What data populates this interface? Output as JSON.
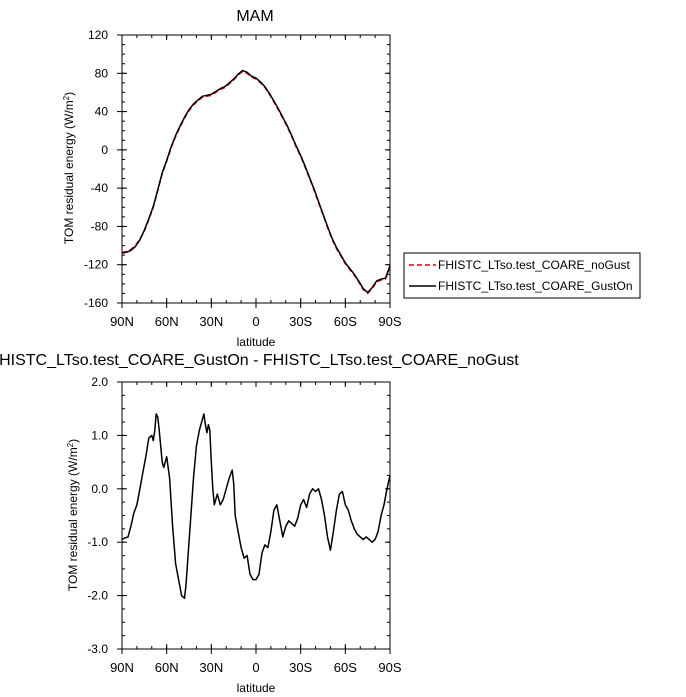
{
  "chart_data": [
    {
      "type": "line",
      "title": "MAM",
      "xlabel": "latitude",
      "ylabel": "TOM residual energy (W/m",
      "ylabel_sup": "2",
      "ylabel_close": ")",
      "xlim": [
        90,
        -90
      ],
      "ylim": [
        -160,
        120
      ],
      "x_ticks": [
        90,
        60,
        30,
        0,
        -30,
        -60,
        -90
      ],
      "x_tick_labels": [
        "90N",
        "60N",
        "30N",
        "0",
        "30S",
        "60S",
        "90S"
      ],
      "y_ticks": [
        -160,
        -120,
        -80,
        -40,
        0,
        40,
        80,
        120
      ],
      "y_tick_labels": [
        "-160",
        "-120",
        "-80",
        "-40",
        "0",
        "40",
        "80",
        "120"
      ],
      "legend_position": "right",
      "series": [
        {
          "name": "FHISTC_LTso.test_COARE_noGust",
          "color": "#e00000",
          "dash": "dashed",
          "x": [
            90,
            87,
            84,
            81,
            78,
            75,
            72,
            69,
            66,
            63,
            60,
            57,
            54,
            51,
            48,
            45,
            42,
            39,
            36,
            33,
            30,
            27,
            24,
            21,
            18,
            15,
            12,
            9,
            6,
            3,
            0,
            -3,
            -6,
            -9,
            -12,
            -15,
            -18,
            -21,
            -24,
            -27,
            -30,
            -33,
            -36,
            -39,
            -42,
            -45,
            -48,
            -51,
            -54,
            -57,
            -60,
            -63,
            -66,
            -69,
            -72,
            -75,
            -78,
            -81,
            -84,
            -87,
            -90
          ],
          "y": [
            -107,
            -106,
            -104,
            -100,
            -93,
            -85,
            -73,
            -60,
            -43,
            -25,
            -12,
            2,
            14,
            24,
            33,
            41,
            47,
            51,
            55,
            56,
            57,
            60,
            63,
            65,
            69,
            73,
            78,
            82,
            80,
            76,
            74,
            70,
            65,
            58,
            50,
            42,
            33,
            24,
            14,
            3,
            -7,
            -18,
            -30,
            -42,
            -55,
            -68,
            -81,
            -93,
            -103,
            -111,
            -119,
            -125,
            -131,
            -138,
            -146,
            -150,
            -145,
            -138,
            -136,
            -135,
            -122
          ]
        },
        {
          "name": "FHISTC_LTso.test_COARE_GustOn",
          "color": "#000000",
          "dash": "solid",
          "x": [
            90,
            87,
            84,
            81,
            78,
            75,
            72,
            69,
            66,
            63,
            60,
            57,
            54,
            51,
            48,
            45,
            42,
            39,
            36,
            33,
            30,
            27,
            24,
            21,
            18,
            15,
            12,
            9,
            6,
            3,
            0,
            -3,
            -6,
            -9,
            -12,
            -15,
            -18,
            -21,
            -24,
            -27,
            -30,
            -33,
            -36,
            -39,
            -42,
            -45,
            -48,
            -51,
            -54,
            -57,
            -60,
            -63,
            -66,
            -69,
            -72,
            -75,
            -78,
            -81,
            -84,
            -87,
            -90
          ],
          "y": [
            -108,
            -107,
            -105,
            -101,
            -94,
            -84,
            -72,
            -59,
            -42,
            -24,
            -11,
            3,
            15,
            25,
            34,
            42,
            48,
            52,
            56,
            57,
            58,
            61,
            64,
            66,
            70,
            74,
            79,
            83,
            81,
            77,
            75,
            71,
            66,
            59,
            51,
            43,
            34,
            25,
            15,
            4,
            -6,
            -17,
            -29,
            -41,
            -54,
            -67,
            -80,
            -92,
            -102,
            -110,
            -118,
            -124,
            -130,
            -137,
            -145,
            -149,
            -144,
            -137,
            -135,
            -134,
            -121
          ]
        }
      ]
    },
    {
      "type": "line",
      "title": "FHISTC_LTso.test_COARE_GustOn - FHISTC_LTso.test_COARE_noGust",
      "xlabel": "latitude",
      "ylabel": "TOM residual energy (W/m",
      "ylabel_sup": "2",
      "ylabel_close": ")",
      "xlim": [
        90,
        -90
      ],
      "ylim": [
        -3.0,
        2.0
      ],
      "x_ticks": [
        90,
        60,
        30,
        0,
        -30,
        -60,
        -90
      ],
      "x_tick_labels": [
        "90N",
        "60N",
        "30N",
        "0",
        "30S",
        "60S",
        "90S"
      ],
      "y_ticks": [
        -3.0,
        -2.0,
        -1.0,
        0.0,
        1.0,
        2.0
      ],
      "y_tick_labels": [
        "-3.0",
        "-2.0",
        "-1.0",
        "0.0",
        "1.0",
        "2.0"
      ],
      "series": [
        {
          "color": "#000000",
          "x": [
            90,
            88,
            86,
            84,
            82,
            80,
            78,
            76,
            74,
            72,
            70,
            69,
            68,
            67,
            66,
            65,
            64,
            63,
            62,
            60,
            58,
            56,
            54,
            52,
            50,
            48,
            47,
            46,
            44,
            42,
            40,
            38,
            36,
            35,
            34,
            33,
            32,
            31,
            30,
            29,
            28,
            26,
            24,
            22,
            20,
            18,
            16,
            15,
            14,
            12,
            10,
            8,
            6,
            4,
            2,
            0,
            -2,
            -4,
            -6,
            -8,
            -10,
            -12,
            -14,
            -16,
            -18,
            -20,
            -22,
            -24,
            -26,
            -28,
            -30,
            -32,
            -34,
            -36,
            -38,
            -40,
            -42,
            -44,
            -46,
            -48,
            -50,
            -52,
            -54,
            -56,
            -58,
            -60,
            -62,
            -64,
            -66,
            -68,
            -70,
            -72,
            -74,
            -76,
            -78,
            -80,
            -82,
            -84,
            -86,
            -88,
            -90
          ],
          "y": [
            -0.95,
            -0.92,
            -0.9,
            -0.7,
            -0.45,
            -0.3,
            0.0,
            0.3,
            0.6,
            0.95,
            1.0,
            0.9,
            1.1,
            1.4,
            1.35,
            1.1,
            0.8,
            0.5,
            0.4,
            0.6,
            0.2,
            -0.7,
            -1.4,
            -1.7,
            -2.0,
            -2.05,
            -1.8,
            -1.4,
            -0.6,
            0.2,
            0.8,
            1.1,
            1.3,
            1.4,
            1.2,
            1.05,
            1.2,
            1.1,
            0.5,
            0.0,
            -0.3,
            -0.1,
            -0.3,
            -0.2,
            0.0,
            0.2,
            0.35,
            0.1,
            -0.5,
            -0.8,
            -1.1,
            -1.3,
            -1.25,
            -1.6,
            -1.7,
            -1.7,
            -1.6,
            -1.2,
            -1.05,
            -1.1,
            -0.8,
            -0.4,
            -0.3,
            -0.6,
            -0.9,
            -0.7,
            -0.6,
            -0.65,
            -0.7,
            -0.55,
            -0.3,
            -0.2,
            -0.35,
            -0.1,
            0.0,
            -0.05,
            0.0,
            -0.2,
            -0.5,
            -0.9,
            -1.15,
            -0.8,
            -0.4,
            -0.1,
            -0.05,
            -0.3,
            -0.4,
            -0.6,
            -0.75,
            -0.85,
            -0.9,
            -0.95,
            -0.9,
            -0.95,
            -1.0,
            -0.95,
            -0.8,
            -0.5,
            -0.3,
            0.0,
            0.25
          ]
        }
      ]
    }
  ]
}
